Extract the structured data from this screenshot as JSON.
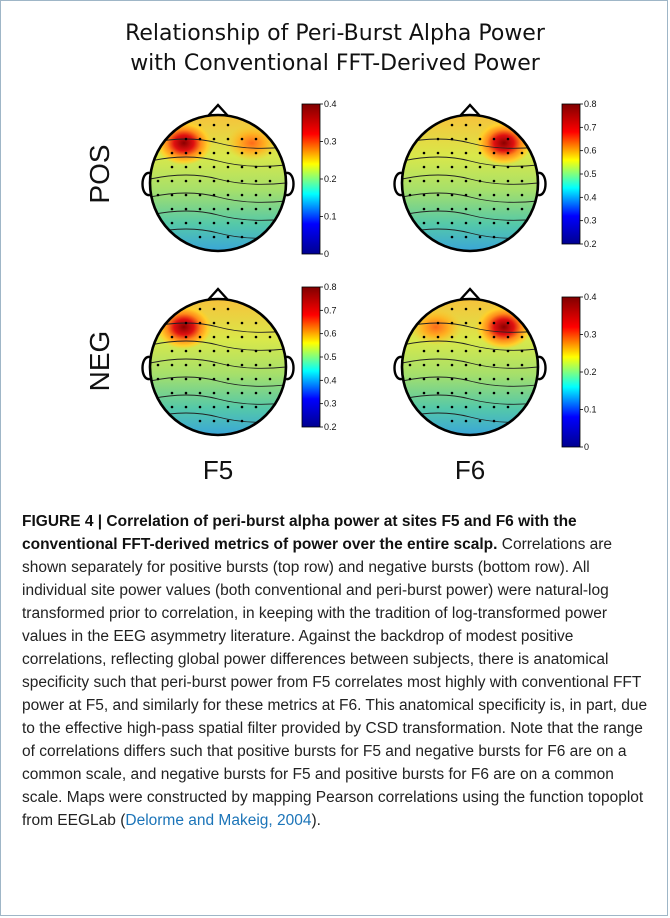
{
  "figure": {
    "title_line1": "Relationship of Peri-Burst Alpha Power",
    "title_line2": "with Conventional FFT-Derived Power",
    "row_labels": [
      "POS",
      "NEG"
    ],
    "col_labels": [
      "F5",
      "F6"
    ],
    "panels": [
      {
        "id": "pos-f5",
        "row": "POS",
        "col": "F5",
        "hotspot": "left-frontal",
        "hotspot2": "right-frontal",
        "cbar_ticks": [
          "0.4",
          "0.3",
          "0.2",
          "0.1",
          "0"
        ]
      },
      {
        "id": "pos-f6",
        "row": "POS",
        "col": "F6",
        "hotspot": "right-frontal",
        "hotspot2": "",
        "cbar_ticks": [
          "0.8",
          "0.7",
          "0.6",
          "0.5",
          "0.4",
          "0.3",
          "0.2"
        ]
      },
      {
        "id": "neg-f5",
        "row": "NEG",
        "col": "F5",
        "hotspot": "left-frontal",
        "hotspot2": "",
        "cbar_ticks": [
          "0.8",
          "0.7",
          "0.6",
          "0.5",
          "0.4",
          "0.3",
          "0.2"
        ]
      },
      {
        "id": "neg-f6",
        "row": "NEG",
        "col": "F6",
        "hotspot": "right-frontal",
        "hotspot2": "left-frontal",
        "cbar_ticks": [
          "0.4",
          "0.3",
          "0.2",
          "0.1",
          "0"
        ]
      }
    ],
    "colormap": [
      "#00008f",
      "#0000ff",
      "#00ffff",
      "#ffff00",
      "#ff0000",
      "#800000"
    ]
  },
  "caption": {
    "heading": "FIGURE 4 | Correlation of peri-burst alpha power at sites F5 and F6 with the conventional FFT-derived metrics of power over the entire scalp.",
    "body_before_ref": "Correlations are shown separately for positive bursts (top row) and negative bursts (bottom row). All individual site power values (both conventional and peri-burst power) were natural-log transformed prior to correlation, in keeping with the tradition of log-transformed power values in the EEG asymmetry literature. Against the backdrop of modest positive correlations, reflecting global power differences between subjects, there is anatomical specificity such that peri-burst power from F5 correlates most highly with conventional FFT power at F5, and similarly for these metrics at F6. This anatomical specificity is, in part, due to the effective high-pass spatial filter provided by CSD transformation. Note that the range of correlations differs such that positive bursts for F5 and negative bursts for F6 are on a common scale, and negative bursts for F5 and positive bursts for F6 are on a common scale. Maps were constructed by mapping Pearson correlations using the function topoplot from EEGLab (",
    "ref_text": "Delorme and Makeig, 2004",
    "body_after_ref": ")."
  }
}
